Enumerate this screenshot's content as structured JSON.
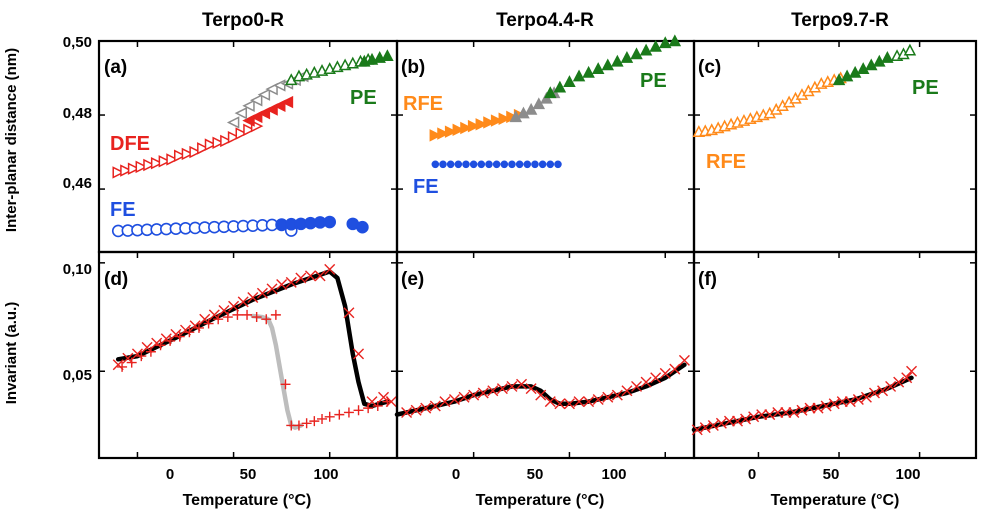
{
  "colors": {
    "red": "#e8231f",
    "gray": "#8c8c8c",
    "green": "#1a7a1a",
    "blue": "#1f4fe0",
    "orange": "#ff8a1a",
    "black": "#000000",
    "lightgray": "#bdbdbd"
  },
  "columns": [
    "Terpo0-R",
    "Terpo4.4-R",
    "Terpo9.7-R"
  ],
  "shared_axes": {
    "x_label": "Temperature (°C)",
    "x_ticks": [
      "0",
      "50",
      "100"
    ],
    "top_y_label": "Inter-planar distance (nm)",
    "top_y_ticks": [
      "0,50",
      "0,48",
      "0,46"
    ],
    "bottom_y_label": "Invariant (a.u.)",
    "bottom_y_ticks": [
      "0,10",
      "0,05"
    ]
  },
  "chart_data": [
    {
      "panel": "(a)",
      "type": "scatter",
      "title": "Terpo0-R",
      "xlabel": "",
      "ylabel": "Inter-planar distance (nm)",
      "xlim": [
        -20,
        135
      ],
      "ylim": [
        0.443,
        0.5
      ],
      "annotations": [
        "DFE",
        "FE",
        "PE"
      ],
      "series": [
        {
          "label": "DFE",
          "marker": "tri-right-open",
          "color": "red",
          "x": [
            -10,
            -6,
            -2,
            2,
            6,
            10,
            14,
            18,
            22,
            26,
            30,
            34,
            38,
            42,
            46,
            50,
            54,
            58,
            62
          ],
          "y": [
            0.4645,
            0.465,
            0.4655,
            0.466,
            0.4665,
            0.467,
            0.4675,
            0.468,
            0.469,
            0.4695,
            0.47,
            0.471,
            0.472,
            0.4725,
            0.473,
            0.474,
            0.475,
            0.476,
            0.477
          ]
        },
        {
          "label": "DFE",
          "marker": "tri-left-filled",
          "color": "red",
          "x": [
            58,
            62,
            66,
            70,
            74,
            78
          ],
          "y": [
            0.4785,
            0.4795,
            0.4805,
            0.4815,
            0.4825,
            0.4835
          ]
        },
        {
          "label": "",
          "marker": "tri-left-open",
          "color": "gray",
          "x": [
            50,
            54,
            58,
            62,
            66,
            70,
            74,
            78,
            82,
            86
          ],
          "y": [
            0.478,
            0.4805,
            0.4825,
            0.484,
            0.4855,
            0.487,
            0.488,
            0.4885,
            0.4895,
            0.4905
          ]
        },
        {
          "label": "PE",
          "marker": "tri-open",
          "color": "green",
          "x": [
            80,
            84,
            88,
            92,
            96,
            100,
            104,
            108,
            112,
            116,
            120
          ],
          "y": [
            0.4895,
            0.4905,
            0.491,
            0.4915,
            0.492,
            0.4925,
            0.493,
            0.4935,
            0.494,
            0.4945,
            0.495
          ]
        },
        {
          "label": "PE",
          "marker": "tri-filled",
          "color": "green",
          "x": [
            118,
            122,
            126,
            130
          ],
          "y": [
            0.4945,
            0.495,
            0.4955,
            0.496
          ]
        },
        {
          "label": "FE",
          "marker": "circle-open",
          "color": "blue",
          "x": [
            -10,
            -5,
            0,
            5,
            10,
            15,
            20,
            25,
            30,
            35,
            40,
            45,
            50,
            55,
            60,
            65,
            70,
            75,
            80
          ],
          "y": [
            0.4487,
            0.4488,
            0.4489,
            0.449,
            0.4491,
            0.4492,
            0.4493,
            0.4494,
            0.4495,
            0.4496,
            0.4497,
            0.4498,
            0.4499,
            0.45,
            0.4501,
            0.4502,
            0.4503,
            0.4503,
            0.4488
          ]
        },
        {
          "label": "FE",
          "marker": "circle-filled",
          "color": "blue",
          "x": [
            75,
            80,
            85,
            90,
            95,
            100,
            112,
            117
          ],
          "y": [
            0.4504,
            0.4505,
            0.4506,
            0.4508,
            0.451,
            0.4511,
            0.4506,
            0.4497
          ]
        }
      ]
    },
    {
      "panel": "(b)",
      "type": "scatter",
      "title": "Terpo4.4-R",
      "xlabel": "",
      "ylabel": "",
      "xlim": [
        -40,
        115
      ],
      "ylim": [
        0.443,
        0.5
      ],
      "annotations": [
        "RFE",
        "FE",
        "PE"
      ],
      "series": [
        {
          "label": "RFE",
          "marker": "tri-right-filled",
          "color": "orange",
          "x": [
            -20,
            -16,
            -12,
            -8,
            -4,
            0,
            4,
            8,
            12,
            16,
            20,
            24
          ],
          "y": [
            0.4745,
            0.475,
            0.4755,
            0.476,
            0.4765,
            0.477,
            0.4775,
            0.478,
            0.4785,
            0.479,
            0.4795,
            0.48
          ]
        },
        {
          "label": "",
          "marker": "tri-filled",
          "color": "gray",
          "x": [
            22,
            26,
            30,
            34,
            38,
            42
          ],
          "y": [
            0.4795,
            0.4805,
            0.4815,
            0.483,
            0.4845,
            0.486
          ]
        },
        {
          "label": "PE",
          "marker": "tri-filled",
          "color": "green",
          "x": [
            40,
            45,
            50,
            55,
            60,
            65,
            70,
            75,
            80,
            85,
            90,
            95,
            100,
            105
          ],
          "y": [
            0.486,
            0.4875,
            0.489,
            0.4905,
            0.4915,
            0.4925,
            0.4935,
            0.4945,
            0.4955,
            0.4965,
            0.4975,
            0.4985,
            0.4995,
            0.5
          ]
        },
        {
          "label": "FE",
          "marker": "circle-filled-small",
          "color": "blue",
          "x": [
            -20,
            -16,
            -12,
            -8,
            -4,
            0,
            4,
            8,
            12,
            16,
            20,
            24,
            28,
            32,
            36,
            40,
            44
          ],
          "y": [
            0.4667,
            0.4667,
            0.4667,
            0.4667,
            0.4667,
            0.4667,
            0.4667,
            0.4667,
            0.4667,
            0.4667,
            0.4667,
            0.4667,
            0.4667,
            0.4667,
            0.4667,
            0.4667,
            0.4667
          ]
        }
      ]
    },
    {
      "panel": "(c)",
      "type": "scatter",
      "title": "Terpo9.7-R",
      "xlabel": "",
      "ylabel": "",
      "xlim": [
        -40,
        135
      ],
      "ylim": [
        0.443,
        0.5
      ],
      "annotations": [
        "RFE",
        "PE"
      ],
      "series": [
        {
          "label": "RFE",
          "marker": "tri-open",
          "color": "orange",
          "x": [
            -37,
            -33,
            -29,
            -25,
            -21,
            -17,
            -13,
            -9,
            -5,
            -1,
            3,
            7,
            11,
            15,
            19,
            23,
            27,
            31,
            35,
            39,
            43,
            47,
            51
          ],
          "y": [
            0.4755,
            0.4757,
            0.476,
            0.4765,
            0.477,
            0.4775,
            0.478,
            0.4785,
            0.479,
            0.4795,
            0.48,
            0.4805,
            0.4815,
            0.4825,
            0.4835,
            0.4845,
            0.4855,
            0.4865,
            0.4875,
            0.4885,
            0.489,
            0.4895,
            0.49
          ]
        },
        {
          "label": "PE",
          "marker": "tri-filled",
          "color": "green",
          "x": [
            50,
            55,
            60,
            65,
            70,
            75,
            80
          ],
          "y": [
            0.4895,
            0.4905,
            0.4915,
            0.4925,
            0.4935,
            0.4945,
            0.4955
          ]
        },
        {
          "label": "PE",
          "marker": "tri-open",
          "color": "green",
          "x": [
            86,
            90,
            94
          ],
          "y": [
            0.496,
            0.4965,
            0.4975
          ]
        }
      ]
    },
    {
      "panel": "(d)",
      "type": "line",
      "title": "",
      "xlabel": "Temperature (°C)",
      "ylabel": "Invariant (a.u.)",
      "xlim": [
        -20,
        135
      ],
      "ylim": [
        0.01,
        0.105
      ],
      "series": [
        {
          "label": "",
          "marker": "line",
          "color": "black",
          "x": [
            -10,
            0,
            20,
            40,
            60,
            80,
            95,
            100,
            104,
            108,
            112,
            115,
            118,
            122,
            130
          ],
          "y": [
            0.0555,
            0.057,
            0.0655,
            0.0745,
            0.083,
            0.09,
            0.0945,
            0.096,
            0.093,
            0.08,
            0.058,
            0.045,
            0.035,
            0.034,
            0.036
          ]
        },
        {
          "label": "",
          "marker": "line",
          "color": "lightgray",
          "x": [
            60,
            65,
            68,
            70,
            72,
            75,
            78,
            80,
            82,
            85
          ],
          "y": [
            0.0755,
            0.075,
            0.074,
            0.07,
            0.062,
            0.047,
            0.032,
            0.025,
            0.024,
            0.025
          ]
        },
        {
          "label": "",
          "marker": "cross",
          "color": "red",
          "x": [
            -10,
            -5,
            0,
            5,
            10,
            15,
            20,
            25,
            30,
            35,
            40,
            45,
            50,
            55,
            60,
            65,
            70,
            75,
            80,
            85,
            90,
            95,
            100,
            110,
            115,
            122,
            128,
            132
          ],
          "y": [
            0.053,
            0.056,
            0.058,
            0.061,
            0.063,
            0.065,
            0.067,
            0.069,
            0.071,
            0.074,
            0.076,
            0.078,
            0.08,
            0.082,
            0.084,
            0.086,
            0.088,
            0.09,
            0.091,
            0.093,
            0.094,
            0.094,
            0.097,
            0.077,
            0.058,
            0.036,
            0.038,
            0.036
          ]
        },
        {
          "label": "",
          "marker": "plus",
          "color": "red",
          "x": [
            -8,
            -3,
            2,
            7,
            12,
            17,
            22,
            27,
            32,
            37,
            42,
            47,
            52,
            57,
            62,
            67,
            72,
            77,
            80,
            84,
            88,
            92,
            96,
            100,
            105,
            110,
            115,
            120,
            125,
            130
          ],
          "y": [
            0.052,
            0.054,
            0.057,
            0.059,
            0.062,
            0.064,
            0.066,
            0.068,
            0.07,
            0.072,
            0.074,
            0.075,
            0.076,
            0.076,
            0.075,
            0.074,
            0.076,
            0.044,
            0.025,
            0.025,
            0.026,
            0.027,
            0.028,
            0.029,
            0.03,
            0.031,
            0.032,
            0.033,
            0.034,
            0.036
          ]
        }
      ]
    },
    {
      "panel": "(e)",
      "type": "line",
      "title": "",
      "xlabel": "Temperature (°C)",
      "ylabel": "",
      "xlim": [
        -40,
        115
      ],
      "ylim": [
        0.01,
        0.105
      ],
      "series": [
        {
          "label": "",
          "marker": "line",
          "color": "black",
          "x": [
            -40,
            -30,
            -20,
            -10,
            0,
            10,
            20,
            30,
            35,
            40,
            45,
            50,
            60,
            70,
            80,
            90,
            100,
            110
          ],
          "y": [
            0.03,
            0.032,
            0.034,
            0.036,
            0.039,
            0.041,
            0.043,
            0.043,
            0.041,
            0.037,
            0.035,
            0.035,
            0.036,
            0.038,
            0.04,
            0.043,
            0.047,
            0.053
          ]
        },
        {
          "label": "",
          "marker": "cross",
          "color": "red",
          "x": [
            -35,
            -30,
            -25,
            -20,
            -15,
            -10,
            -5,
            0,
            5,
            10,
            15,
            20,
            25,
            30,
            35,
            40,
            45,
            50,
            55,
            60,
            65,
            70,
            75,
            80,
            85,
            90,
            95,
            100,
            105,
            110
          ],
          "y": [
            0.031,
            0.032,
            0.033,
            0.034,
            0.036,
            0.037,
            0.038,
            0.039,
            0.04,
            0.041,
            0.042,
            0.043,
            0.044,
            0.042,
            0.039,
            0.036,
            0.035,
            0.035,
            0.036,
            0.036,
            0.037,
            0.038,
            0.039,
            0.041,
            0.043,
            0.045,
            0.047,
            0.049,
            0.051,
            0.055
          ]
        }
      ]
    },
    {
      "panel": "(f)",
      "type": "line",
      "title": "",
      "xlabel": "Temperature (°C)",
      "ylabel": "",
      "xlim": [
        -40,
        135
      ],
      "ylim": [
        0.01,
        0.105
      ],
      "series": [
        {
          "label": "",
          "marker": "line",
          "color": "black",
          "x": [
            -40,
            -20,
            0,
            20,
            40,
            60,
            80,
            95
          ],
          "y": [
            0.023,
            0.026,
            0.029,
            0.031,
            0.034,
            0.037,
            0.042,
            0.047
          ]
        },
        {
          "label": "",
          "marker": "cross",
          "color": "red",
          "x": [
            -38,
            -33,
            -28,
            -23,
            -18,
            -13,
            -8,
            -3,
            2,
            7,
            12,
            17,
            22,
            27,
            32,
            37,
            42,
            47,
            52,
            57,
            62,
            67,
            72,
            77,
            82,
            87,
            92,
            95
          ],
          "y": [
            0.023,
            0.024,
            0.025,
            0.026,
            0.027,
            0.027,
            0.028,
            0.029,
            0.03,
            0.03,
            0.031,
            0.031,
            0.031,
            0.032,
            0.033,
            0.033,
            0.034,
            0.035,
            0.036,
            0.036,
            0.037,
            0.038,
            0.04,
            0.041,
            0.043,
            0.045,
            0.047,
            0.05
          ]
        }
      ]
    }
  ]
}
